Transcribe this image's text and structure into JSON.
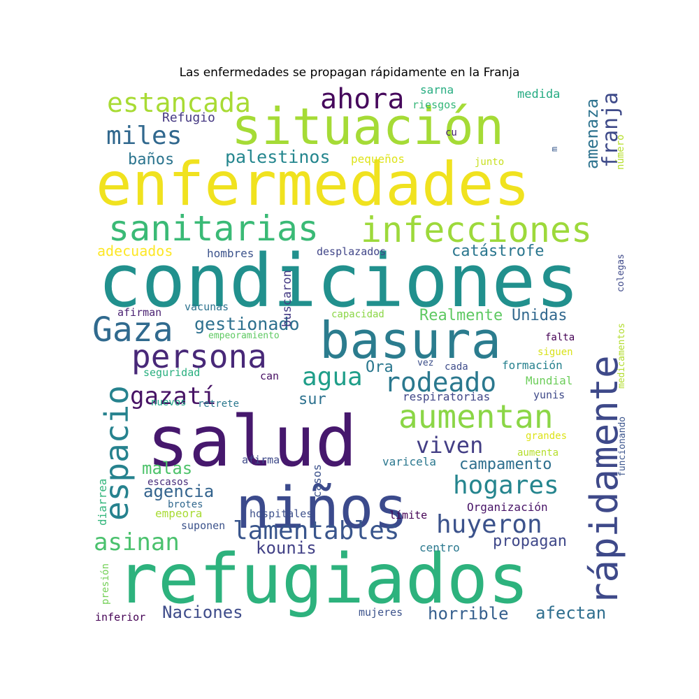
{
  "chart_data": {
    "type": "wordcloud",
    "title": "Las enfermedades se propagan rápidamente en la Franja",
    "words": [
      {
        "text": "condiciones",
        "color": "#21908d"
      },
      {
        "text": "enfermedades",
        "color": "#f0e21f"
      },
      {
        "text": "refugiados",
        "color": "#2db27d"
      },
      {
        "text": "situación",
        "color": "#a5db36"
      },
      {
        "text": "salud",
        "color": "#46186d"
      },
      {
        "text": "niños",
        "color": "#3b4a8c"
      },
      {
        "text": "basura",
        "color": "#2b7c8e"
      },
      {
        "text": "sanitarias",
        "color": "#3aba76"
      },
      {
        "text": "infecciones",
        "color": "#9dd93b"
      },
      {
        "text": "rápidamente",
        "color": "#3e4989"
      },
      {
        "text": "Gaza",
        "color": "#306a8e"
      },
      {
        "text": "persona",
        "color": "#482878"
      },
      {
        "text": "espacio",
        "color": "#26828e"
      },
      {
        "text": "aumentan",
        "color": "#8bd646"
      },
      {
        "text": "estancada",
        "color": "#a8db34"
      },
      {
        "text": "ahora",
        "color": "#46085c"
      },
      {
        "text": "miles",
        "color": "#31688e"
      },
      {
        "text": "rodeado",
        "color": "#2a788e"
      },
      {
        "text": "agua",
        "color": "#1f9e89"
      },
      {
        "text": "lamentables",
        "color": "#39558c"
      },
      {
        "text": "huyeron",
        "color": "#3b528b"
      },
      {
        "text": "hogares",
        "color": "#25858e"
      },
      {
        "text": "asinan",
        "color": "#4ac16d"
      },
      {
        "text": "gazatí",
        "color": "#471365"
      },
      {
        "text": "viven",
        "color": "#433e85"
      },
      {
        "text": "franja",
        "color": "#3e4a89"
      },
      {
        "text": "amenaza",
        "color": "#2c728e"
      },
      {
        "text": "palestinos",
        "color": "#24868e"
      },
      {
        "text": "gestionado",
        "color": "#2d708e"
      },
      {
        "text": "campamento",
        "color": "#2e6f8e"
      },
      {
        "text": "catástrofe",
        "color": "#2a768e"
      },
      {
        "text": "Realmente",
        "color": "#5ec962"
      },
      {
        "text": "Unidas",
        "color": "#31688e"
      },
      {
        "text": "Naciones",
        "color": "#3e4c8a"
      },
      {
        "text": "horrible",
        "color": "#355f8d"
      },
      {
        "text": "afectan",
        "color": "#2e6e8e"
      },
      {
        "text": "propagan",
        "color": "#3f4889"
      },
      {
        "text": "kounis",
        "color": "#424186"
      },
      {
        "text": "agencia",
        "color": "#33638d"
      },
      {
        "text": "malas",
        "color": "#4ec36b"
      },
      {
        "text": "baños",
        "color": "#2b748e"
      },
      {
        "text": "adecuados",
        "color": "#fde725"
      },
      {
        "text": "Ora",
        "color": "#2a778e"
      },
      {
        "text": "sur",
        "color": "#2c718e"
      },
      {
        "text": "respiratorias",
        "color": "#404688"
      },
      {
        "text": "Refugio",
        "color": "#453882"
      },
      {
        "text": "sarna",
        "color": "#27ad81"
      },
      {
        "text": "riesgos",
        "color": "#35b779"
      },
      {
        "text": "medida",
        "color": "#25ab82"
      },
      {
        "text": "cu",
        "color": "#482475"
      },
      {
        "text": "pequeños",
        "color": "#dde318"
      },
      {
        "text": "junto",
        "color": "#c8e020"
      },
      {
        "text": "m",
        "color": "#38598c"
      },
      {
        "text": "número",
        "color": "#b5de2b"
      },
      {
        "text": "hombres",
        "color": "#3b528b"
      },
      {
        "text": "buscaron",
        "color": "#443a83"
      },
      {
        "text": "desplazados",
        "color": "#404588"
      },
      {
        "text": "colegas",
        "color": "#3e4989"
      },
      {
        "text": "afirman",
        "color": "#481f70"
      },
      {
        "text": "vacunas",
        "color": "#2c728e"
      },
      {
        "text": "capacidad",
        "color": "#8bd646"
      },
      {
        "text": "medicamentos",
        "color": "#b2dd2d"
      },
      {
        "text": "empeoramiento",
        "color": "#5ec962"
      },
      {
        "text": "falta",
        "color": "#440154"
      },
      {
        "text": "siguen",
        "color": "#d8e219"
      },
      {
        "text": "seguridad",
        "color": "#29af7f"
      },
      {
        "text": "vez",
        "color": "#3c4f8a"
      },
      {
        "text": "cada",
        "color": "#3e4c8a"
      },
      {
        "text": "formación",
        "color": "#26818e"
      },
      {
        "text": "can",
        "color": "#471063"
      },
      {
        "text": "Mundial",
        "color": "#6ccd5a"
      },
      {
        "text": "nuevos",
        "color": "#21a685"
      },
      {
        "text": "retrete",
        "color": "#2a788e"
      },
      {
        "text": "yunis",
        "color": "#3e4989"
      },
      {
        "text": "funcionando",
        "color": "#3a548c"
      },
      {
        "text": "grandes",
        "color": "#dde318"
      },
      {
        "text": "aumenta",
        "color": "#b5de2b"
      },
      {
        "text": "afirma",
        "color": "#3e4989"
      },
      {
        "text": "casos",
        "color": "#3b518b"
      },
      {
        "text": "varicela",
        "color": "#2a778e"
      },
      {
        "text": "escasos",
        "color": "#472c7a"
      },
      {
        "text": "diarrea",
        "color": "#31b57b"
      },
      {
        "text": "brotes",
        "color": "#31688e"
      },
      {
        "text": "empeora",
        "color": "#a8db34"
      },
      {
        "text": "Organización",
        "color": "#481467"
      },
      {
        "text": "hospitales",
        "color": "#3c4f8a"
      },
      {
        "text": "límite",
        "color": "#440154"
      },
      {
        "text": "suponen",
        "color": "#3b528b"
      },
      {
        "text": "centro",
        "color": "#2a788e"
      },
      {
        "text": "presión",
        "color": "#73d056"
      },
      {
        "text": "inferior",
        "color": "#440154"
      },
      {
        "text": "mujeres",
        "color": "#3b528b"
      }
    ]
  }
}
